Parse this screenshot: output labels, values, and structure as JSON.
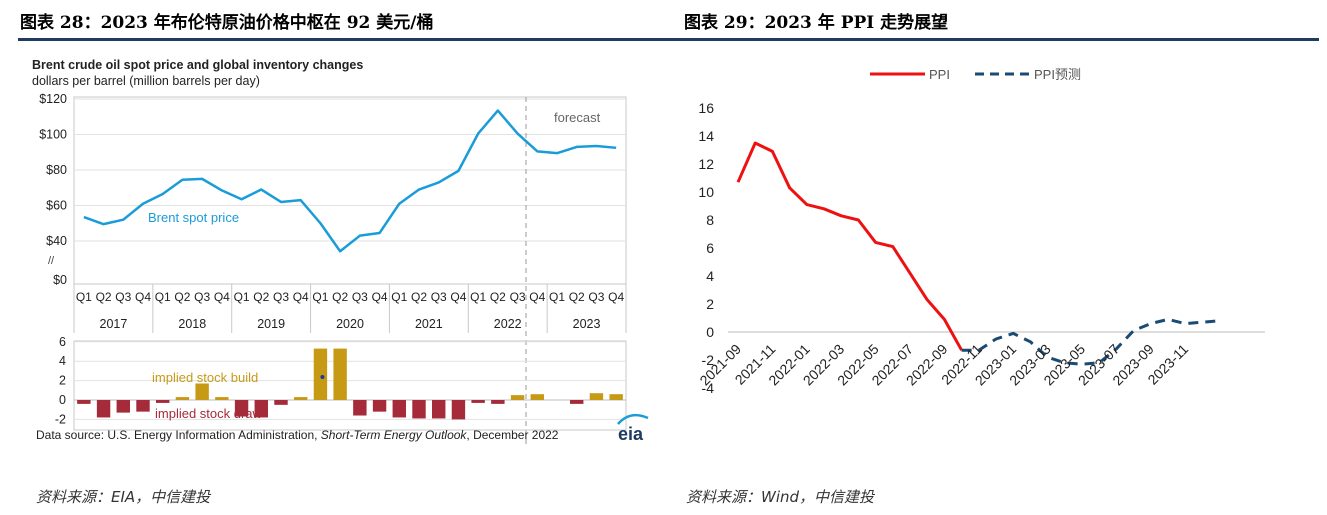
{
  "left_title": "图表 28：2023 年布伦特原油价格中枢在 92 美元/桶",
  "right_title": "图表 29：2023 年 PPI 走势展望",
  "left_source": "资料来源：EIA，中信建投",
  "right_source": "资料来源：Wind，中信建投",
  "colors": {
    "brent": "#1a9cd8",
    "bar": "#a52a3a",
    "bar_build": "#c79a16",
    "ppi": "#ee1111",
    "ppi_forecast": "#1b4a72",
    "rule": "#1f3a63"
  },
  "chart_data": [
    {
      "type": "line",
      "title": "Brent crude oil spot price and global inventory changes",
      "subtitle": "dollars per barrel (million barrels per day)",
      "y_tick_labels": [
        "$120",
        "$100",
        "$80",
        "$60",
        "$40",
        "$0"
      ],
      "y_ticks": [
        120,
        100,
        80,
        60,
        40,
        0
      ],
      "ylim": [
        0,
        120
      ],
      "axis_break_symbol": "//",
      "quarters": [
        "Q1",
        "Q2",
        "Q3",
        "Q4",
        "Q1",
        "Q2",
        "Q3",
        "Q4",
        "Q1",
        "Q2",
        "Q3",
        "Q4",
        "Q1",
        "Q2",
        "Q3",
        "Q4",
        "Q1",
        "Q2",
        "Q3",
        "Q4",
        "Q1",
        "Q2",
        "Q3",
        "Q4",
        "Q1",
        "Q2",
        "Q3",
        "Q4"
      ],
      "years": [
        "2017",
        "2018",
        "2019",
        "2020",
        "2021",
        "2022",
        "2023"
      ],
      "series": [
        {
          "name": "Brent spot price",
          "values": [
            53.5,
            49.5,
            52,
            61,
            66.5,
            74.5,
            75,
            68.5,
            63.5,
            69,
            62,
            63,
            50,
            29.5,
            43,
            44.5,
            61,
            69,
            73,
            79.5,
            100.5,
            113.5,
            100.5,
            90.5,
            89.5,
            93,
            93.5,
            92.5
          ]
        }
      ],
      "annotation_forecast": "forecast",
      "forecast_start_index": 22.5
    },
    {
      "type": "bar",
      "y_tick_labels": [
        "6",
        "4",
        "2",
        "0",
        "-2"
      ],
      "y_ticks": [
        6,
        4,
        2,
        0,
        -2
      ],
      "ylim": [
        -2.2,
        6
      ],
      "series": [
        {
          "name": "implied stock change",
          "values": [
            -0.4,
            -1.8,
            -1.3,
            -1.2,
            -0.3,
            0.3,
            1.7,
            0.3,
            -1.7,
            -1.8,
            -0.5,
            0.3,
            5.3,
            5.3,
            -1.6,
            -1.2,
            -1.8,
            -1.9,
            -1.9,
            -2.0,
            -0.3,
            -0.4,
            0.5,
            0.6,
            0,
            -0.4,
            0.7,
            0.6
          ]
        }
      ],
      "label_build": "implied stock build",
      "label_draw": "implied stock draw"
    },
    {
      "type": "line",
      "series": [
        {
          "name": "PPI",
          "values": [
            10.7,
            13.5,
            12.9,
            10.3,
            9.1,
            8.8,
            8.3,
            8.0,
            6.4,
            6.1,
            4.2,
            2.3,
            0.9,
            -1.3
          ]
        },
        {
          "name": "PPI预测",
          "values": [
            -1.3,
            -1.3,
            -0.5,
            -0.1,
            -0.7,
            -1.8,
            -2.2,
            -2.3,
            -2.2,
            -1.2,
            0.1,
            0.6,
            0.9,
            0.6,
            0.7,
            0.8
          ]
        }
      ],
      "x_labels": [
        "2021-09",
        "2021-11",
        "2022-01",
        "2022-03",
        "2022-05",
        "2022-07",
        "2022-09",
        "2022-11",
        "2023-01",
        "2023-03",
        "2023-05",
        "2023-07",
        "2023-09",
        "2023-11"
      ],
      "y_tick_labels": [
        "16",
        "14",
        "12",
        "10",
        "8",
        "6",
        "4",
        "2",
        "0",
        "-2",
        "-4"
      ],
      "y_ticks": [
        16,
        14,
        12,
        10,
        8,
        6,
        4,
        2,
        0,
        -2,
        -4
      ],
      "ylim": [
        -4,
        16
      ],
      "legend_placement": "top"
    }
  ],
  "eia_footer": {
    "prefix": "Data source: U.S. Energy Information Administration, ",
    "italic": "Short-Term Energy Outlook",
    "suffix": ", December 2022",
    "logo_text": "eia"
  }
}
